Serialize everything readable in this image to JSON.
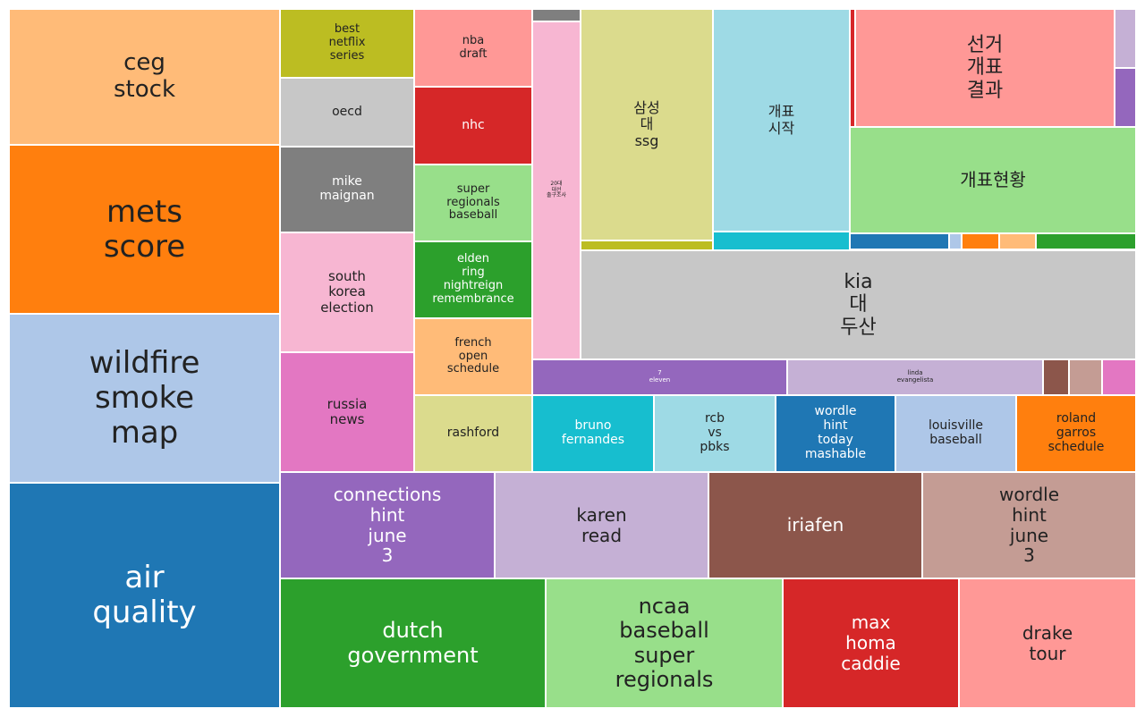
{
  "chart_data": {
    "type": "treemap",
    "title": "",
    "items": [
      {
        "label": "ceg\nstock",
        "color": "#ffbb78"
      },
      {
        "label": "mets\nscore",
        "color": "#ff7f0e"
      },
      {
        "label": "wildfire\nsmoke\nmap",
        "color": "#aec7e8"
      },
      {
        "label": "air\nquality",
        "color": "#1f77b4"
      },
      {
        "label": "best\nnetflix\nseries",
        "color": "#bcbd22"
      },
      {
        "label": "oecd",
        "color": "#c7c7c7"
      },
      {
        "label": "mike\nmaignan",
        "color": "#7f7f7f"
      },
      {
        "label": "south\nkorea\nelection",
        "color": "#f7b6d2"
      },
      {
        "label": "russia\nnews",
        "color": "#e377c2"
      },
      {
        "label": "nba\ndraft",
        "color": "#ff9896"
      },
      {
        "label": "nhc",
        "color": "#d62728"
      },
      {
        "label": "super\nregionals\nbaseball",
        "color": "#98df8a"
      },
      {
        "label": "elden\nring\nnightreign\nremembrance",
        "color": "#2ca02c"
      },
      {
        "label": "french\nopen\nschedule",
        "color": "#ffbb78"
      },
      {
        "label": "rashford",
        "color": "#dbdb8d"
      },
      {
        "label": "",
        "color": "#7f7f7f"
      },
      {
        "label": "20대\n대선\n출구조사",
        "color": "#f7b6d2"
      },
      {
        "label": "삼성\n대\nssg",
        "color": "#dbdb8d"
      },
      {
        "label": "",
        "color": "#bcbd22"
      },
      {
        "label": "개표\n시작",
        "color": "#9edae5"
      },
      {
        "label": "",
        "color": "#17becf"
      },
      {
        "label": "",
        "color": "#d62728"
      },
      {
        "label": "선거\n개표\n결과",
        "color": "#ff9896"
      },
      {
        "label": "",
        "color": "#c5b0d5"
      },
      {
        "label": "",
        "color": "#9467bd"
      },
      {
        "label": "개표현황",
        "color": "#98df8a"
      },
      {
        "label": "",
        "color": "#1f77b4"
      },
      {
        "label": "",
        "color": "#aec7e8"
      },
      {
        "label": "",
        "color": "#ff7f0e"
      },
      {
        "label": "",
        "color": "#ffbb78"
      },
      {
        "label": "",
        "color": "#2ca02c"
      },
      {
        "label": "kia\n대\n두산",
        "color": "#c7c7c7"
      },
      {
        "label": "7\neleven",
        "color": "#9467bd"
      },
      {
        "label": "linda\nevangelista",
        "color": "#c5b0d5"
      },
      {
        "label": "",
        "color": "#8c564b"
      },
      {
        "label": "",
        "color": "#c49c94"
      },
      {
        "label": "",
        "color": "#e377c2"
      },
      {
        "label": "bruno\nfernandes",
        "color": "#17becf"
      },
      {
        "label": "rcb\nvs\npbks",
        "color": "#9edae5"
      },
      {
        "label": "wordle\nhint\ntoday\nmashable",
        "color": "#1f77b4"
      },
      {
        "label": "louisville\nbaseball",
        "color": "#aec7e8"
      },
      {
        "label": "roland\ngarros\nschedule",
        "color": "#ff7f0e"
      },
      {
        "label": "connections\nhint\njune\n3",
        "color": "#9467bd"
      },
      {
        "label": "karen\nread",
        "color": "#c5b0d5"
      },
      {
        "label": "iriafen",
        "color": "#8c564b"
      },
      {
        "label": "wordle\nhint\njune\n3",
        "color": "#c49c94"
      },
      {
        "label": "dutch\ngovernment",
        "color": "#2ca02c"
      },
      {
        "label": "ncaa\nbaseball\nsuper\nregionals",
        "color": "#98df8a"
      },
      {
        "label": "max\nhoma\ncaddie",
        "color": "#d62728"
      },
      {
        "label": "drake\ntour",
        "color": "#ff9896"
      }
    ]
  }
}
